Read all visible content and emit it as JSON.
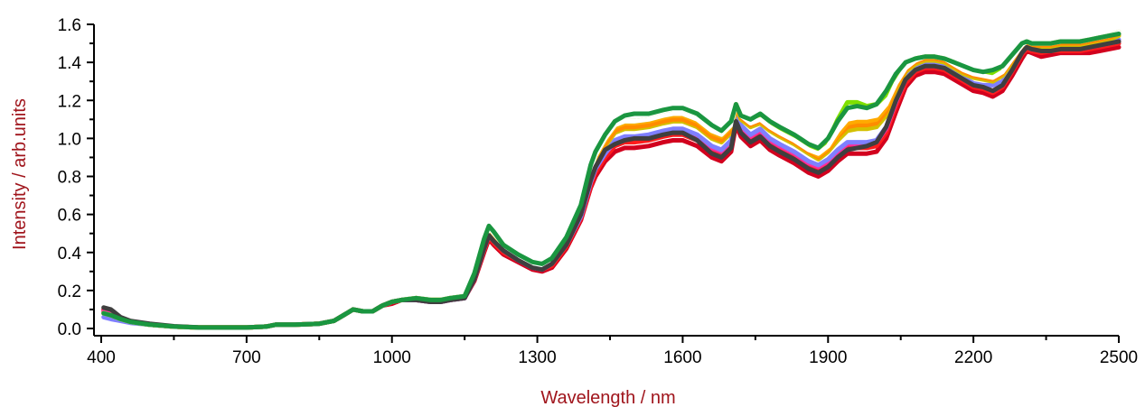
{
  "chart_data": {
    "type": "line",
    "title": "",
    "xlabel": "Wavelength / nm",
    "ylabel": "Intensity / arb.units",
    "xlim": [
      400,
      2500
    ],
    "ylim": [
      0.0,
      1.6
    ],
    "x_ticks": [
      400,
      700,
      1000,
      1300,
      1600,
      1900,
      2200,
      2500
    ],
    "x_tick_labels": [
      "400",
      "700",
      "1000",
      "1300",
      "1600",
      "1900",
      "2200",
      "2500"
    ],
    "x_minor_ticks": [
      550,
      850,
      1150,
      1450,
      1750,
      2050,
      2350
    ],
    "y_ticks": [
      0.0,
      0.2,
      0.4,
      0.6,
      0.8,
      1.0,
      1.2,
      1.4,
      1.6
    ],
    "y_tick_labels": [
      "0.0",
      "0.2",
      "0.4",
      "0.6",
      "0.8",
      "1.0",
      "1.2",
      "1.4",
      "1.6"
    ],
    "grid": false,
    "legend": "none",
    "axis_title_color": "#a0151c",
    "x": [
      405,
      420,
      440,
      460,
      500,
      550,
      600,
      700,
      740,
      760,
      800,
      850,
      880,
      900,
      920,
      940,
      960,
      980,
      1000,
      1020,
      1050,
      1080,
      1100,
      1120,
      1150,
      1170,
      1190,
      1200,
      1210,
      1230,
      1260,
      1290,
      1310,
      1330,
      1360,
      1390,
      1410,
      1420,
      1440,
      1460,
      1480,
      1500,
      1530,
      1560,
      1580,
      1600,
      1630,
      1660,
      1680,
      1700,
      1710,
      1720,
      1740,
      1760,
      1780,
      1800,
      1830,
      1860,
      1880,
      1900,
      1920,
      1940,
      1960,
      1980,
      2000,
      2020,
      2040,
      2060,
      2080,
      2100,
      2120,
      2140,
      2160,
      2180,
      2200,
      2220,
      2240,
      2260,
      2280,
      2300,
      2310,
      2320,
      2340,
      2360,
      2380,
      2400,
      2420,
      2440,
      2460,
      2480,
      2500
    ],
    "series": [
      {
        "color": "#d2001e",
        "values": [
          0.1,
          0.08,
          0.05,
          0.035,
          0.02,
          0.01,
          0.005,
          0.005,
          0.01,
          0.02,
          0.02,
          0.025,
          0.04,
          0.07,
          0.1,
          0.09,
          0.09,
          0.12,
          0.13,
          0.15,
          0.15,
          0.14,
          0.14,
          0.15,
          0.16,
          0.25,
          0.4,
          0.47,
          0.44,
          0.39,
          0.35,
          0.31,
          0.3,
          0.32,
          0.42,
          0.57,
          0.74,
          0.8,
          0.88,
          0.93,
          0.95,
          0.95,
          0.96,
          0.98,
          0.99,
          0.99,
          0.96,
          0.9,
          0.88,
          0.93,
          1.07,
          1.01,
          0.96,
          0.99,
          0.94,
          0.91,
          0.87,
          0.82,
          0.8,
          0.83,
          0.88,
          0.92,
          0.92,
          0.92,
          0.93,
          1.0,
          1.14,
          1.27,
          1.33,
          1.35,
          1.35,
          1.34,
          1.31,
          1.28,
          1.25,
          1.24,
          1.22,
          1.25,
          1.33,
          1.42,
          1.46,
          1.45,
          1.43,
          1.44,
          1.45,
          1.45,
          1.45,
          1.45,
          1.46,
          1.47,
          1.48
        ]
      },
      {
        "color": "#ff1c1c",
        "values": [
          0.09,
          0.08,
          0.05,
          0.035,
          0.02,
          0.01,
          0.005,
          0.005,
          0.01,
          0.02,
          0.02,
          0.025,
          0.04,
          0.07,
          0.1,
          0.09,
          0.09,
          0.12,
          0.14,
          0.15,
          0.15,
          0.14,
          0.14,
          0.15,
          0.16,
          0.26,
          0.41,
          0.48,
          0.45,
          0.4,
          0.36,
          0.32,
          0.31,
          0.33,
          0.43,
          0.58,
          0.75,
          0.82,
          0.9,
          0.96,
          0.98,
          0.98,
          0.99,
          1.01,
          1.02,
          1.02,
          0.99,
          0.93,
          0.91,
          0.96,
          1.1,
          1.04,
          0.99,
          1.02,
          0.97,
          0.94,
          0.9,
          0.85,
          0.83,
          0.86,
          0.91,
          0.95,
          0.95,
          0.95,
          0.96,
          1.03,
          1.17,
          1.29,
          1.35,
          1.37,
          1.37,
          1.36,
          1.33,
          1.3,
          1.27,
          1.26,
          1.24,
          1.27,
          1.35,
          1.44,
          1.47,
          1.46,
          1.45,
          1.46,
          1.46,
          1.46,
          1.46,
          1.47,
          1.48,
          1.49,
          1.5
        ]
      },
      {
        "color": "#ff2d9a",
        "values": [
          0.09,
          0.08,
          0.05,
          0.035,
          0.02,
          0.01,
          0.005,
          0.005,
          0.01,
          0.02,
          0.02,
          0.025,
          0.04,
          0.07,
          0.1,
          0.09,
          0.09,
          0.12,
          0.14,
          0.15,
          0.15,
          0.14,
          0.14,
          0.15,
          0.16,
          0.26,
          0.42,
          0.49,
          0.46,
          0.41,
          0.36,
          0.32,
          0.31,
          0.34,
          0.44,
          0.59,
          0.77,
          0.84,
          0.92,
          0.98,
          1.0,
          1.0,
          1.01,
          1.03,
          1.04,
          1.04,
          1.01,
          0.95,
          0.93,
          0.98,
          1.12,
          1.06,
          1.01,
          1.04,
          0.99,
          0.96,
          0.92,
          0.87,
          0.85,
          0.88,
          0.93,
          0.97,
          0.97,
          0.97,
          0.98,
          1.05,
          1.19,
          1.31,
          1.36,
          1.38,
          1.38,
          1.37,
          1.34,
          1.31,
          1.28,
          1.27,
          1.25,
          1.28,
          1.36,
          1.45,
          1.48,
          1.47,
          1.46,
          1.47,
          1.47,
          1.47,
          1.47,
          1.48,
          1.49,
          1.5,
          1.51
        ]
      },
      {
        "color": "#7f7fff",
        "values": [
          0.06,
          0.05,
          0.04,
          0.03,
          0.02,
          0.01,
          0.005,
          0.005,
          0.01,
          0.02,
          0.02,
          0.025,
          0.04,
          0.07,
          0.1,
          0.09,
          0.09,
          0.12,
          0.14,
          0.15,
          0.15,
          0.14,
          0.14,
          0.15,
          0.16,
          0.26,
          0.42,
          0.49,
          0.46,
          0.41,
          0.36,
          0.32,
          0.31,
          0.34,
          0.44,
          0.59,
          0.77,
          0.84,
          0.92,
          0.99,
          1.01,
          1.01,
          1.02,
          1.04,
          1.05,
          1.05,
          1.02,
          0.96,
          0.94,
          0.99,
          1.13,
          1.07,
          1.02,
          1.05,
          1.0,
          0.97,
          0.93,
          0.88,
          0.86,
          0.89,
          0.94,
          0.98,
          0.98,
          0.98,
          0.99,
          1.06,
          1.2,
          1.32,
          1.37,
          1.39,
          1.39,
          1.38,
          1.35,
          1.32,
          1.29,
          1.28,
          1.28,
          1.3,
          1.37,
          1.46,
          1.48,
          1.47,
          1.47,
          1.47,
          1.48,
          1.48,
          1.48,
          1.49,
          1.5,
          1.51,
          1.52
        ]
      },
      {
        "color": "#d4c000",
        "values": [
          0.08,
          0.07,
          0.05,
          0.035,
          0.02,
          0.01,
          0.005,
          0.005,
          0.01,
          0.02,
          0.02,
          0.025,
          0.04,
          0.07,
          0.1,
          0.09,
          0.09,
          0.12,
          0.14,
          0.15,
          0.16,
          0.15,
          0.15,
          0.16,
          0.17,
          0.27,
          0.44,
          0.51,
          0.48,
          0.42,
          0.37,
          0.33,
          0.32,
          0.35,
          0.45,
          0.61,
          0.8,
          0.87,
          0.96,
          1.03,
          1.05,
          1.05,
          1.06,
          1.08,
          1.09,
          1.09,
          1.06,
          1.0,
          0.98,
          1.03,
          1.16,
          1.1,
          1.06,
          1.08,
          1.04,
          1.01,
          0.97,
          0.92,
          0.89,
          0.93,
          0.99,
          1.04,
          1.05,
          1.05,
          1.06,
          1.12,
          1.25,
          1.35,
          1.39,
          1.41,
          1.41,
          1.4,
          1.37,
          1.34,
          1.32,
          1.31,
          1.3,
          1.33,
          1.4,
          1.47,
          1.49,
          1.48,
          1.48,
          1.48,
          1.49,
          1.49,
          1.49,
          1.5,
          1.51,
          1.52,
          1.54
        ]
      },
      {
        "color": "#ff8c00",
        "values": [
          0.08,
          0.07,
          0.05,
          0.035,
          0.02,
          0.01,
          0.005,
          0.005,
          0.01,
          0.02,
          0.02,
          0.025,
          0.04,
          0.07,
          0.1,
          0.09,
          0.09,
          0.12,
          0.14,
          0.15,
          0.16,
          0.15,
          0.15,
          0.16,
          0.17,
          0.27,
          0.44,
          0.51,
          0.48,
          0.42,
          0.37,
          0.33,
          0.32,
          0.35,
          0.46,
          0.62,
          0.81,
          0.88,
          0.97,
          1.04,
          1.06,
          1.06,
          1.07,
          1.09,
          1.1,
          1.1,
          1.07,
          1.01,
          0.99,
          1.04,
          1.17,
          1.11,
          1.07,
          1.09,
          1.05,
          1.02,
          0.98,
          0.93,
          0.9,
          0.94,
          1.01,
          1.06,
          1.07,
          1.07,
          1.08,
          1.14,
          1.27,
          1.36,
          1.4,
          1.42,
          1.42,
          1.41,
          1.38,
          1.35,
          1.33,
          1.32,
          1.31,
          1.34,
          1.41,
          1.48,
          1.5,
          1.49,
          1.49,
          1.49,
          1.5,
          1.5,
          1.5,
          1.51,
          1.52,
          1.53,
          1.55
        ]
      },
      {
        "color": "#ffaa00",
        "values": [
          0.08,
          0.07,
          0.05,
          0.035,
          0.02,
          0.01,
          0.005,
          0.005,
          0.01,
          0.02,
          0.02,
          0.025,
          0.04,
          0.07,
          0.1,
          0.09,
          0.09,
          0.12,
          0.14,
          0.15,
          0.16,
          0.15,
          0.15,
          0.16,
          0.17,
          0.28,
          0.45,
          0.52,
          0.49,
          0.43,
          0.38,
          0.34,
          0.33,
          0.36,
          0.47,
          0.63,
          0.83,
          0.9,
          0.99,
          1.06,
          1.08,
          1.08,
          1.09,
          1.11,
          1.12,
          1.12,
          1.09,
          1.03,
          1.01,
          1.06,
          1.18,
          1.12,
          1.08,
          1.1,
          1.06,
          1.03,
          0.99,
          0.94,
          0.91,
          0.95,
          1.02,
          1.08,
          1.09,
          1.09,
          1.1,
          1.16,
          1.28,
          1.37,
          1.41,
          1.43,
          1.43,
          1.42,
          1.39,
          1.36,
          1.34,
          1.33,
          1.32,
          1.35,
          1.42,
          1.49,
          1.51,
          1.5,
          1.5,
          1.5,
          1.51,
          1.51,
          1.51,
          1.52,
          1.53,
          1.54,
          1.56
        ]
      },
      {
        "color": "#7fe000",
        "values": [
          0.08,
          0.07,
          0.05,
          0.035,
          0.02,
          0.01,
          0.005,
          0.005,
          0.01,
          0.02,
          0.02,
          0.025,
          0.04,
          0.07,
          0.1,
          0.09,
          0.09,
          0.12,
          0.14,
          0.15,
          0.16,
          0.15,
          0.15,
          0.16,
          0.17,
          0.28,
          0.45,
          0.53,
          0.5,
          0.44,
          0.38,
          0.34,
          0.33,
          0.36,
          0.47,
          0.64,
          0.84,
          0.91,
          1.0,
          1.07,
          1.09,
          1.09,
          1.1,
          1.12,
          1.13,
          1.13,
          1.1,
          1.04,
          1.02,
          1.07,
          1.18,
          1.12,
          1.09,
          1.11,
          1.07,
          1.04,
          1.0,
          0.95,
          0.93,
          0.99,
          1.1,
          1.19,
          1.19,
          1.17,
          1.18,
          1.23,
          1.32,
          1.39,
          1.42,
          1.43,
          1.43,
          1.42,
          1.4,
          1.37,
          1.35,
          1.34,
          1.34,
          1.37,
          1.43,
          1.49,
          1.51,
          1.5,
          1.5,
          1.5,
          1.51,
          1.51,
          1.51,
          1.52,
          1.53,
          1.54,
          1.56
        ]
      },
      {
        "color": "#ffffff",
        "values": [
          0.08,
          0.07,
          0.05,
          0.035,
          0.02,
          0.01,
          0.005,
          0.005,
          0.01,
          0.02,
          0.02,
          0.025,
          0.04,
          0.07,
          0.1,
          0.09,
          0.09,
          0.12,
          0.14,
          0.15,
          0.16,
          0.15,
          0.15,
          0.16,
          0.17,
          0.28,
          0.45,
          0.53,
          0.5,
          0.44,
          0.38,
          0.34,
          0.33,
          0.36,
          0.47,
          0.64,
          0.84,
          0.91,
          1.0,
          1.07,
          1.09,
          1.09,
          1.1,
          1.12,
          1.13,
          1.13,
          1.1,
          1.04,
          1.02,
          1.07,
          1.18,
          1.12,
          1.08,
          1.1,
          1.06,
          1.03,
          0.99,
          0.94,
          0.92,
          0.96,
          1.04,
          1.1,
          1.11,
          1.11,
          1.12,
          1.18,
          1.29,
          1.37,
          1.41,
          1.43,
          1.43,
          1.42,
          1.39,
          1.36,
          1.34,
          1.33,
          1.32,
          1.35,
          1.42,
          1.49,
          1.51,
          1.5,
          1.5,
          1.5,
          1.51,
          1.51,
          1.51,
          1.52,
          1.53,
          1.54,
          1.56
        ]
      },
      {
        "color": "#3f3f3f",
        "values": [
          0.11,
          0.1,
          0.06,
          0.04,
          0.025,
          0.012,
          0.006,
          0.005,
          0.01,
          0.02,
          0.02,
          0.025,
          0.04,
          0.07,
          0.1,
          0.09,
          0.09,
          0.12,
          0.14,
          0.15,
          0.15,
          0.14,
          0.14,
          0.15,
          0.16,
          0.26,
          0.42,
          0.49,
          0.46,
          0.41,
          0.36,
          0.32,
          0.31,
          0.34,
          0.44,
          0.6,
          0.78,
          0.85,
          0.94,
          0.97,
          0.99,
          1.0,
          1.0,
          1.02,
          1.03,
          1.03,
          0.99,
          0.92,
          0.9,
          0.95,
          1.09,
          1.03,
          0.98,
          1.01,
          0.96,
          0.93,
          0.89,
          0.84,
          0.82,
          0.85,
          0.9,
          0.94,
          0.95,
          0.96,
          0.98,
          1.06,
          1.2,
          1.31,
          1.36,
          1.38,
          1.38,
          1.37,
          1.34,
          1.31,
          1.28,
          1.27,
          1.25,
          1.28,
          1.36,
          1.45,
          1.48,
          1.47,
          1.46,
          1.46,
          1.47,
          1.47,
          1.47,
          1.48,
          1.49,
          1.5,
          1.51
        ]
      },
      {
        "color": "#1a9640",
        "values": [
          0.08,
          0.07,
          0.05,
          0.035,
          0.02,
          0.01,
          0.005,
          0.005,
          0.01,
          0.02,
          0.02,
          0.025,
          0.04,
          0.07,
          0.1,
          0.09,
          0.09,
          0.12,
          0.14,
          0.15,
          0.16,
          0.15,
          0.15,
          0.16,
          0.17,
          0.29,
          0.47,
          0.54,
          0.51,
          0.44,
          0.39,
          0.35,
          0.34,
          0.37,
          0.48,
          0.65,
          0.86,
          0.93,
          1.02,
          1.09,
          1.12,
          1.13,
          1.13,
          1.15,
          1.16,
          1.16,
          1.13,
          1.07,
          1.04,
          1.09,
          1.18,
          1.12,
          1.1,
          1.13,
          1.09,
          1.06,
          1.02,
          0.97,
          0.95,
          1.0,
          1.09,
          1.16,
          1.17,
          1.16,
          1.18,
          1.25,
          1.34,
          1.4,
          1.42,
          1.43,
          1.43,
          1.42,
          1.4,
          1.38,
          1.36,
          1.35,
          1.36,
          1.38,
          1.44,
          1.5,
          1.51,
          1.5,
          1.5,
          1.5,
          1.51,
          1.51,
          1.51,
          1.52,
          1.53,
          1.54,
          1.55
        ]
      }
    ]
  }
}
